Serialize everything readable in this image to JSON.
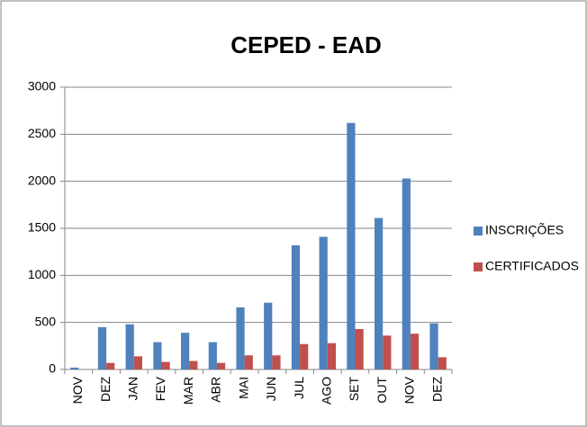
{
  "chart_data": {
    "type": "bar",
    "title": "CEPED - EAD",
    "categories": [
      "NOV",
      "DEZ",
      "JAN",
      "FEV",
      "MAR",
      "ABR",
      "MAI",
      "JUN",
      "JUL",
      "AGO",
      "SET",
      "OUT",
      "NOV",
      "DEZ"
    ],
    "series": [
      {
        "name": "INSCRIÇÕES",
        "color": "#4f81bd",
        "values": [
          20,
          450,
          480,
          290,
          390,
          290,
          660,
          710,
          1320,
          1410,
          2620,
          1610,
          2030,
          490
        ]
      },
      {
        "name": "CERTIFICADOS",
        "color": "#c0504d",
        "values": [
          0,
          70,
          140,
          80,
          90,
          70,
          150,
          150,
          270,
          280,
          430,
          360,
          380,
          130
        ]
      }
    ],
    "ylim": [
      0,
      3000
    ],
    "yticks": [
      0,
      500,
      1000,
      1500,
      2000,
      2500,
      3000
    ],
    "grid": true,
    "legend": "right"
  }
}
